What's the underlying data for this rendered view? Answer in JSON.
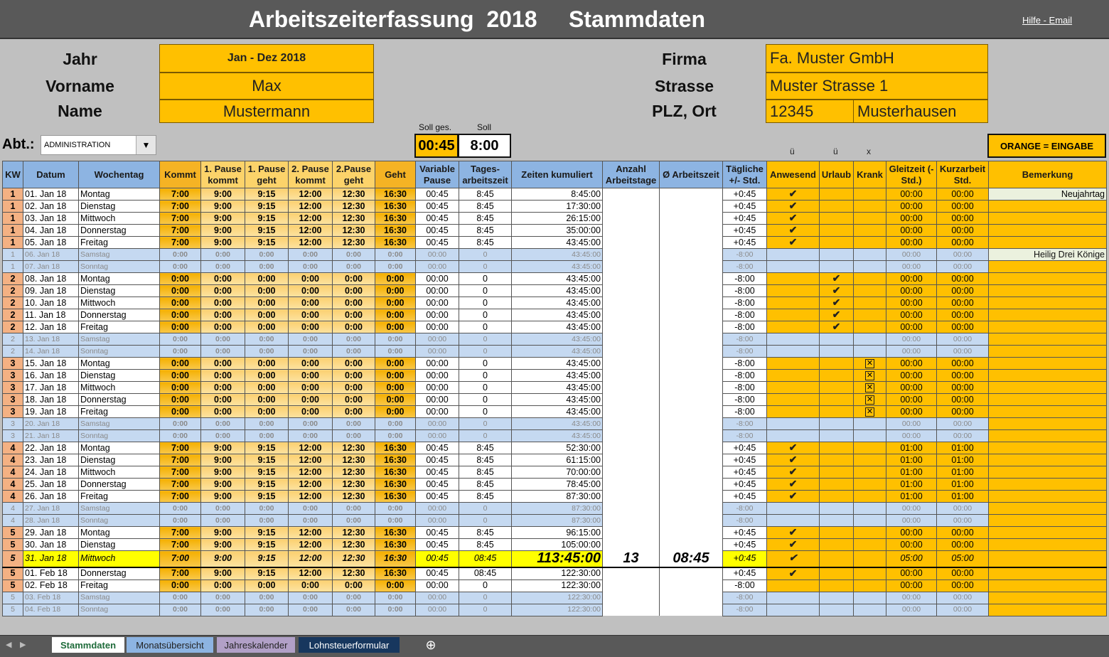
{
  "header": {
    "title": "Arbeitszeiterfassung  2018     Stammdaten",
    "help_link": "Hilfe - Email"
  },
  "stammdaten": {
    "jahr_label": "Jahr",
    "jahr_value": "Jan - Dez 2018",
    "vorname_label": "Vorname",
    "vorname_value": "Max",
    "name_label": "Name",
    "name_value": "Mustermann",
    "firma_label": "Firma",
    "firma_value": "Fa. Muster GmbH",
    "strasse_label": "Strasse",
    "strasse_value": "Muster Strasse 1",
    "plz_label": "PLZ, Ort",
    "plz_value": "12345",
    "ort_value": "Musterhausen",
    "abt_label": "Abt.:",
    "abt_value": "ADMINISTRATION",
    "soll_ges_label": "Soll ges.",
    "soll_ges_value": "00:45",
    "soll_label": "Soll",
    "soll_value": "8:00",
    "legend": "ORANGE = EINGABE",
    "symbol_hints": [
      "ü",
      "ü",
      "x"
    ]
  },
  "colors": {
    "input_orange": "#ffc000",
    "header_blue": "#8db4e2",
    "weekend_blue": "#c5d9f1",
    "kw_salmon": "#f4b183",
    "highlight_yellow": "#ffff00",
    "holiday_note": "#ebf1de"
  },
  "columns": [
    "KW",
    "Datum",
    "Wochentag",
    "Kommt",
    "1. Pause kommt",
    "1. Pause geht",
    "2. Pause kommt",
    "2.Pause geht",
    "Geht",
    "Variable Pause",
    "Tages-arbeitszeit",
    "Zeiten kumuliert",
    "Anzahl Arbeitstage",
    "Ø Arbeitszeit",
    "Tägliche +/- Std.",
    "Anwesend",
    "Urlaub",
    "Krank",
    "Gleitzeit (- Std.)",
    "Kurzarbeit Std.",
    "Bemerkung"
  ],
  "rows": [
    {
      "t": "work",
      "c": [
        "1",
        "01. Jan 18",
        "Montag",
        "7:00",
        "9:00",
        "9:15",
        "12:00",
        "12:30",
        "16:30",
        "00:45",
        "8:45",
        "8:45:00",
        "",
        "",
        "+0:45",
        "check",
        "",
        "",
        "00:00",
        "00:00",
        "Neujahrtag"
      ]
    },
    {
      "t": "work",
      "c": [
        "1",
        "02. Jan 18",
        "Dienstag",
        "7:00",
        "9:00",
        "9:15",
        "12:00",
        "12:30",
        "16:30",
        "00:45",
        "8:45",
        "17:30:00",
        "",
        "",
        "+0:45",
        "check",
        "",
        "",
        "00:00",
        "00:00",
        ""
      ]
    },
    {
      "t": "work",
      "c": [
        "1",
        "03. Jan 18",
        "Mittwoch",
        "7:00",
        "9:00",
        "9:15",
        "12:00",
        "12:30",
        "16:30",
        "00:45",
        "8:45",
        "26:15:00",
        "",
        "",
        "+0:45",
        "check",
        "",
        "",
        "00:00",
        "00:00",
        ""
      ]
    },
    {
      "t": "work",
      "c": [
        "1",
        "04. Jan 18",
        "Donnerstag",
        "7:00",
        "9:00",
        "9:15",
        "12:00",
        "12:30",
        "16:30",
        "00:45",
        "8:45",
        "35:00:00",
        "",
        "",
        "+0:45",
        "check",
        "",
        "",
        "00:00",
        "00:00",
        ""
      ]
    },
    {
      "t": "work",
      "c": [
        "1",
        "05. Jan 18",
        "Freitag",
        "7:00",
        "9:00",
        "9:15",
        "12:00",
        "12:30",
        "16:30",
        "00:45",
        "8:45",
        "43:45:00",
        "",
        "",
        "+0:45",
        "check",
        "",
        "",
        "00:00",
        "00:00",
        ""
      ]
    },
    {
      "t": "we",
      "c": [
        "1",
        "06. Jan 18",
        "Samstag",
        "0:00",
        "0:00",
        "0:00",
        "0:00",
        "0:00",
        "0:00",
        "00:00",
        "0",
        "43:45:00",
        "",
        "",
        "-8:00",
        "",
        "",
        "",
        "00:00",
        "00:00",
        "Heilig Drei Könige"
      ]
    },
    {
      "t": "we",
      "c": [
        "1",
        "07. Jan 18",
        "Sonntag",
        "0:00",
        "0:00",
        "0:00",
        "0:00",
        "0:00",
        "0:00",
        "00:00",
        "0",
        "43:45:00",
        "",
        "",
        "-8:00",
        "",
        "",
        "",
        "00:00",
        "00:00",
        ""
      ]
    },
    {
      "t": "work",
      "c": [
        "2",
        "08. Jan 18",
        "Montag",
        "0:00",
        "0:00",
        "0:00",
        "0:00",
        "0:00",
        "0:00",
        "00:00",
        "0",
        "43:45:00",
        "",
        "",
        "-8:00",
        "",
        "check",
        "",
        "00:00",
        "00:00",
        ""
      ]
    },
    {
      "t": "work",
      "c": [
        "2",
        "09. Jan 18",
        "Dienstag",
        "0:00",
        "0:00",
        "0:00",
        "0:00",
        "0:00",
        "0:00",
        "00:00",
        "0",
        "43:45:00",
        "",
        "",
        "-8:00",
        "",
        "check",
        "",
        "00:00",
        "00:00",
        ""
      ]
    },
    {
      "t": "work",
      "c": [
        "2",
        "10. Jan 18",
        "Mittwoch",
        "0:00",
        "0:00",
        "0:00",
        "0:00",
        "0:00",
        "0:00",
        "00:00",
        "0",
        "43:45:00",
        "",
        "",
        "-8:00",
        "",
        "check",
        "",
        "00:00",
        "00:00",
        ""
      ]
    },
    {
      "t": "work",
      "c": [
        "2",
        "11. Jan 18",
        "Donnerstag",
        "0:00",
        "0:00",
        "0:00",
        "0:00",
        "0:00",
        "0:00",
        "00:00",
        "0",
        "43:45:00",
        "",
        "",
        "-8:00",
        "",
        "check",
        "",
        "00:00",
        "00:00",
        ""
      ]
    },
    {
      "t": "work",
      "c": [
        "2",
        "12. Jan 18",
        "Freitag",
        "0:00",
        "0:00",
        "0:00",
        "0:00",
        "0:00",
        "0:00",
        "00:00",
        "0",
        "43:45:00",
        "",
        "",
        "-8:00",
        "",
        "check",
        "",
        "00:00",
        "00:00",
        ""
      ]
    },
    {
      "t": "we",
      "c": [
        "2",
        "13. Jan 18",
        "Samstag",
        "0:00",
        "0:00",
        "0:00",
        "0:00",
        "0:00",
        "0:00",
        "00:00",
        "0",
        "43:45:00",
        "",
        "",
        "-8:00",
        "",
        "",
        "",
        "00:00",
        "00:00",
        ""
      ]
    },
    {
      "t": "we",
      "c": [
        "2",
        "14. Jan 18",
        "Sonntag",
        "0:00",
        "0:00",
        "0:00",
        "0:00",
        "0:00",
        "0:00",
        "00:00",
        "0",
        "43:45:00",
        "",
        "",
        "-8:00",
        "",
        "",
        "",
        "00:00",
        "00:00",
        ""
      ]
    },
    {
      "t": "work",
      "c": [
        "3",
        "15. Jan 18",
        "Montag",
        "0:00",
        "0:00",
        "0:00",
        "0:00",
        "0:00",
        "0:00",
        "00:00",
        "0",
        "43:45:00",
        "",
        "",
        "-8:00",
        "",
        "",
        "x",
        "00:00",
        "00:00",
        ""
      ]
    },
    {
      "t": "work",
      "c": [
        "3",
        "16. Jan 18",
        "Dienstag",
        "0:00",
        "0:00",
        "0:00",
        "0:00",
        "0:00",
        "0:00",
        "00:00",
        "0",
        "43:45:00",
        "",
        "",
        "-8:00",
        "",
        "",
        "x",
        "00:00",
        "00:00",
        ""
      ]
    },
    {
      "t": "work",
      "c": [
        "3",
        "17. Jan 18",
        "Mittwoch",
        "0:00",
        "0:00",
        "0:00",
        "0:00",
        "0:00",
        "0:00",
        "00:00",
        "0",
        "43:45:00",
        "",
        "",
        "-8:00",
        "",
        "",
        "x",
        "00:00",
        "00:00",
        ""
      ]
    },
    {
      "t": "work",
      "c": [
        "3",
        "18. Jan 18",
        "Donnerstag",
        "0:00",
        "0:00",
        "0:00",
        "0:00",
        "0:00",
        "0:00",
        "00:00",
        "0",
        "43:45:00",
        "",
        "",
        "-8:00",
        "",
        "",
        "x",
        "00:00",
        "00:00",
        ""
      ]
    },
    {
      "t": "work",
      "c": [
        "3",
        "19. Jan 18",
        "Freitag",
        "0:00",
        "0:00",
        "0:00",
        "0:00",
        "0:00",
        "0:00",
        "00:00",
        "0",
        "43:45:00",
        "",
        "",
        "-8:00",
        "",
        "",
        "x",
        "00:00",
        "00:00",
        ""
      ]
    },
    {
      "t": "we",
      "c": [
        "3",
        "20. Jan 18",
        "Samstag",
        "0:00",
        "0:00",
        "0:00",
        "0:00",
        "0:00",
        "0:00",
        "00:00",
        "0",
        "43:45:00",
        "",
        "",
        "-8:00",
        "",
        "",
        "",
        "00:00",
        "00:00",
        ""
      ]
    },
    {
      "t": "we",
      "c": [
        "3",
        "21. Jan 18",
        "Sonntag",
        "0:00",
        "0:00",
        "0:00",
        "0:00",
        "0:00",
        "0:00",
        "00:00",
        "0",
        "43:45:00",
        "",
        "",
        "-8:00",
        "",
        "",
        "",
        "00:00",
        "00:00",
        ""
      ]
    },
    {
      "t": "work",
      "c": [
        "4",
        "22. Jan 18",
        "Montag",
        "7:00",
        "9:00",
        "9:15",
        "12:00",
        "12:30",
        "16:30",
        "00:45",
        "8:45",
        "52:30:00",
        "",
        "",
        "+0:45",
        "check",
        "",
        "",
        "01:00",
        "01:00",
        ""
      ]
    },
    {
      "t": "work",
      "c": [
        "4",
        "23. Jan 18",
        "Dienstag",
        "7:00",
        "9:00",
        "9:15",
        "12:00",
        "12:30",
        "16:30",
        "00:45",
        "8:45",
        "61:15:00",
        "",
        "",
        "+0:45",
        "check",
        "",
        "",
        "01:00",
        "01:00",
        ""
      ]
    },
    {
      "t": "work",
      "c": [
        "4",
        "24. Jan 18",
        "Mittwoch",
        "7:00",
        "9:00",
        "9:15",
        "12:00",
        "12:30",
        "16:30",
        "00:45",
        "8:45",
        "70:00:00",
        "",
        "",
        "+0:45",
        "check",
        "",
        "",
        "01:00",
        "01:00",
        ""
      ]
    },
    {
      "t": "work",
      "c": [
        "4",
        "25. Jan 18",
        "Donnerstag",
        "7:00",
        "9:00",
        "9:15",
        "12:00",
        "12:30",
        "16:30",
        "00:45",
        "8:45",
        "78:45:00",
        "",
        "",
        "+0:45",
        "check",
        "",
        "",
        "01:00",
        "01:00",
        ""
      ]
    },
    {
      "t": "work",
      "c": [
        "4",
        "26. Jan 18",
        "Freitag",
        "7:00",
        "9:00",
        "9:15",
        "12:00",
        "12:30",
        "16:30",
        "00:45",
        "8:45",
        "87:30:00",
        "",
        "",
        "+0:45",
        "check",
        "",
        "",
        "01:00",
        "01:00",
        ""
      ]
    },
    {
      "t": "we",
      "c": [
        "4",
        "27. Jan 18",
        "Samstag",
        "0:00",
        "0:00",
        "0:00",
        "0:00",
        "0:00",
        "0:00",
        "00:00",
        "0",
        "87:30:00",
        "",
        "",
        "-8:00",
        "",
        "",
        "",
        "00:00",
        "00:00",
        ""
      ]
    },
    {
      "t": "we",
      "c": [
        "4",
        "28. Jan 18",
        "Sonntag",
        "0:00",
        "0:00",
        "0:00",
        "0:00",
        "0:00",
        "0:00",
        "00:00",
        "0",
        "87:30:00",
        "",
        "",
        "-8:00",
        "",
        "",
        "",
        "00:00",
        "00:00",
        ""
      ]
    },
    {
      "t": "work",
      "c": [
        "5",
        "29. Jan 18",
        "Montag",
        "7:00",
        "9:00",
        "9:15",
        "12:00",
        "12:30",
        "16:30",
        "00:45",
        "8:45",
        "96:15:00",
        "",
        "",
        "+0:45",
        "check",
        "",
        "",
        "00:00",
        "00:00",
        ""
      ]
    },
    {
      "t": "work",
      "c": [
        "5",
        "30. Jan 18",
        "Dienstag",
        "7:00",
        "9:00",
        "9:15",
        "12:00",
        "12:30",
        "16:30",
        "00:45",
        "8:45",
        "105:00:00",
        "",
        "",
        "+0:45",
        "check",
        "",
        "",
        "00:00",
        "00:00",
        ""
      ]
    },
    {
      "t": "hl",
      "c": [
        "5",
        "31. Jan 18",
        "Mittwoch",
        "7:00",
        "9:00",
        "9:15",
        "12:00",
        "12:30",
        "16:30",
        "00:45",
        "08:45",
        "113:45:00",
        "13",
        "08:45",
        "+0:45",
        "check",
        "",
        "",
        "05:00",
        "05:00",
        ""
      ]
    },
    {
      "t": "work",
      "c": [
        "5",
        "01. Feb 18",
        "Donnerstag",
        "7:00",
        "9:00",
        "9:15",
        "12:00",
        "12:30",
        "16:30",
        "00:45",
        "08:45",
        "122:30:00",
        "",
        "",
        "+0:45",
        "check",
        "",
        "",
        "00:00",
        "00:00",
        ""
      ]
    },
    {
      "t": "work",
      "c": [
        "5",
        "02. Feb 18",
        "Freitag",
        "0:00",
        "0:00",
        "0:00",
        "0:00",
        "0:00",
        "0:00",
        "00:00",
        "0",
        "122:30:00",
        "",
        "",
        "-8:00",
        "",
        "",
        "",
        "00:00",
        "00:00",
        ""
      ]
    },
    {
      "t": "we",
      "c": [
        "5",
        "03. Feb 18",
        "Samstag",
        "0:00",
        "0:00",
        "0:00",
        "0:00",
        "0:00",
        "0:00",
        "00:00",
        "0",
        "122:30:00",
        "",
        "",
        "-8:00",
        "",
        "",
        "",
        "00:00",
        "00:00",
        ""
      ]
    },
    {
      "t": "we",
      "c": [
        "5",
        "04. Feb 18",
        "Sonntag",
        "0:00",
        "0:00",
        "0:00",
        "0:00",
        "0:00",
        "0:00",
        "00:00",
        "0",
        "122:30:00",
        "",
        "",
        "-8:00",
        "",
        "",
        "",
        "00:00",
        "00:00",
        ""
      ]
    }
  ],
  "sheet_tabs": [
    {
      "label": "Stammdaten",
      "active": true,
      "color": "#ffffff"
    },
    {
      "label": "Monatsübersicht",
      "color": "#8db4e2"
    },
    {
      "label": "Jahreskalender",
      "color": "#b1a0c7"
    },
    {
      "label": "Lohnsteuerformular",
      "color": "#17375e"
    }
  ],
  "icons": {
    "add_sheet": "plus-circle-icon",
    "dropdown": "chevron-down-icon",
    "check": "check-icon",
    "krank": "x-box-icon"
  }
}
